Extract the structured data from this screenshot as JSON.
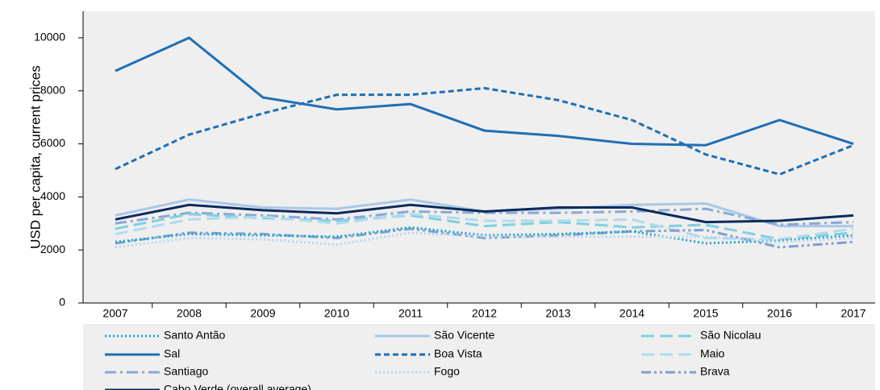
{
  "chart_data": {
    "type": "line",
    "y_label": "USD per capita, current prices",
    "categories": [
      "2007",
      "2008",
      "2009",
      "2010",
      "2011",
      "2012",
      "2013",
      "2014",
      "2015",
      "2016",
      "2017"
    ],
    "ylim": [
      0,
      11000
    ],
    "yticks": [
      0,
      2000,
      4000,
      6000,
      8000,
      10000
    ],
    "grid": false,
    "series": [
      {
        "name": "Santo Antão",
        "color": "#1fa6d0",
        "style": "dotted",
        "values": [
          2300,
          2600,
          2550,
          2500,
          2850,
          2550,
          2600,
          2700,
          2250,
          2350,
          2550
        ]
      },
      {
        "name": "São Vicente",
        "color": "#a9c8e8",
        "style": "solid",
        "values": [
          3300,
          3900,
          3600,
          3550,
          3900,
          3450,
          3550,
          3700,
          3750,
          2900,
          2900
        ]
      },
      {
        "name": "São Nicolau",
        "color": "#7fd0e0",
        "style": "longdash",
        "values": [
          2800,
          3350,
          3200,
          3100,
          3300,
          2900,
          3050,
          2850,
          2950,
          2400,
          2650
        ]
      },
      {
        "name": "Sal",
        "color": "#1f6fb5",
        "style": "solid",
        "values": [
          8750,
          10000,
          7750,
          7300,
          7500,
          6500,
          6300,
          6000,
          5950,
          6900,
          6000
        ]
      },
      {
        "name": "Boa Vista",
        "color": "#1f6fb5",
        "style": "dashed",
        "values": [
          5050,
          6350,
          7150,
          7850,
          7850,
          8100,
          7650,
          6900,
          5600,
          4850,
          5950
        ]
      },
      {
        "name": "Maio",
        "color": "#b0dbeb",
        "style": "longdash",
        "values": [
          2600,
          3150,
          3250,
          3000,
          3350,
          3100,
          3100,
          3150,
          2450,
          2400,
          2800
        ]
      },
      {
        "name": "Santiago",
        "color": "#8aa8d6",
        "style": "dashdot",
        "values": [
          3000,
          3400,
          3300,
          3150,
          3450,
          3400,
          3400,
          3450,
          3550,
          2950,
          3050
        ]
      },
      {
        "name": "Fogo",
        "color": "#b8d4ee",
        "style": "dotted",
        "values": [
          2100,
          2450,
          2400,
          2200,
          2650,
          2500,
          2500,
          2500,
          2500,
          2300,
          2450
        ]
      },
      {
        "name": "Brava",
        "color": "#7f9fd0",
        "style": "dashdotdot",
        "values": [
          2250,
          2650,
          2600,
          2450,
          2800,
          2450,
          2550,
          2700,
          2750,
          2100,
          2300
        ]
      },
      {
        "name": "Cabo Verde (overall average)",
        "color": "#0c2a5c",
        "style": "solid",
        "values": [
          3150,
          3700,
          3500,
          3380,
          3700,
          3450,
          3600,
          3600,
          3050,
          3100,
          3300
        ]
      }
    ]
  }
}
